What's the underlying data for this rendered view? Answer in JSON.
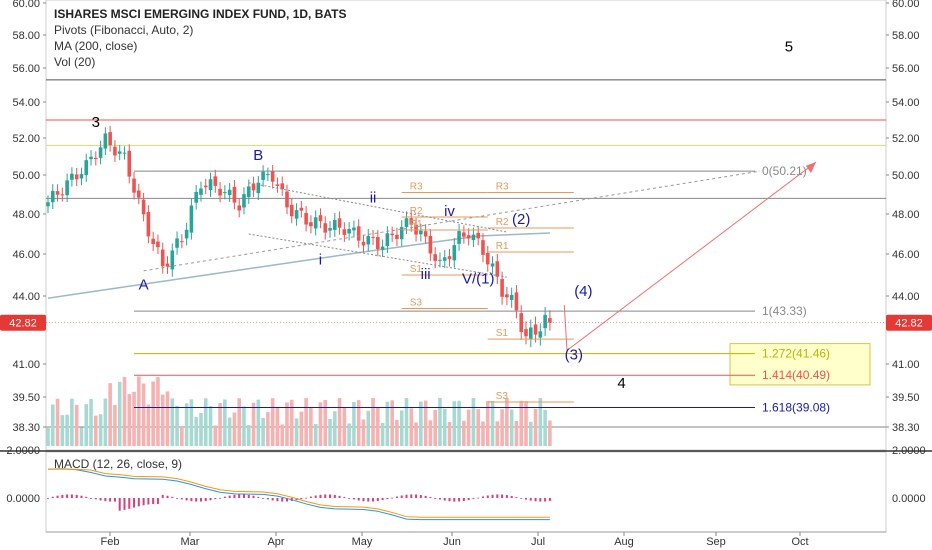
{
  "legend": {
    "title": "ISHARES MSCI EMERGING INDEX FUND, 1D, BATS",
    "pivots": "Pivots (Fibonacci, Auto, 2)",
    "ma": "MA (200, close)",
    "vol": "Vol (20)"
  },
  "macd_legend": "MACD (12, 26, close, 9)",
  "colors": {
    "up": "#26a69a",
    "down": "#ef5350",
    "ma": "#9db8c9",
    "pivot": "#e59a59",
    "wave": "#1a1aa8",
    "arrow": "#f07070",
    "fib_grey": "#888888",
    "fib_yellow_fill": "#ffffcc",
    "price_tag": "#e53935"
  },
  "chart_data": {
    "type": "candlestick",
    "title": "ISHARES MSCI EMERGING INDEX FUND, 1D, BATS",
    "y_ticks": [
      "60.00",
      "58.00",
      "56.00",
      "54.00",
      "52.00",
      "50.00",
      "48.00",
      "46.00",
      "44.00",
      "41.00",
      "39.50",
      "38.30"
    ],
    "y_tick_values": [
      60,
      58,
      56,
      54,
      52,
      50,
      48,
      46,
      44,
      41,
      39.5,
      38.3
    ],
    "x_ticks": [
      "Feb",
      "Mar",
      "Apr",
      "May",
      "Jun",
      "Jul",
      "Aug",
      "Sep",
      "Oct"
    ],
    "last_price": "42.82",
    "last_price_value": 42.82,
    "macd_ticks": [
      "2.0000",
      "0.0000"
    ],
    "macd_tick_values": [
      2,
      0
    ],
    "ohlc_anchors": [
      [
        0,
        48.6
      ],
      [
        8,
        50.5
      ],
      [
        12,
        51.9
      ],
      [
        16,
        50.9
      ],
      [
        20,
        47.8
      ],
      [
        24,
        45.4
      ],
      [
        28,
        46.8
      ],
      [
        32,
        49.6
      ],
      [
        36,
        49.3
      ],
      [
        40,
        48.5
      ],
      [
        44,
        49.8
      ],
      [
        47,
        50.0
      ],
      [
        50,
        48.4
      ],
      [
        54,
        47.7
      ],
      [
        58,
        47.4
      ],
      [
        62,
        47.3
      ],
      [
        66,
        46.7
      ],
      [
        70,
        46.5
      ],
      [
        74,
        47.3
      ],
      [
        76,
        47.6
      ],
      [
        80,
        46.3
      ],
      [
        82,
        45.4
      ],
      [
        86,
        46.8
      ],
      [
        88,
        47.1
      ],
      [
        91,
        46.2
      ],
      [
        95,
        44.3
      ],
      [
        98,
        43.4
      ],
      [
        100,
        42.1
      ],
      [
        104,
        42.9
      ],
      [
        105,
        42.82
      ]
    ],
    "horizontal_lines": [
      {
        "value": 55.3,
        "color": "#555555"
      },
      {
        "value": 53.0,
        "color": "#ef5350"
      },
      {
        "value": 51.6,
        "color": "#d4dc7a"
      },
      {
        "value": 48.8,
        "color": "#888888"
      },
      {
        "value": 38.3,
        "color": "#888888"
      }
    ],
    "fib_levels": [
      {
        "label": "0(50.21)",
        "value": 50.21,
        "color": "#888888"
      },
      {
        "label": "1(43.33)",
        "value": 43.33,
        "color": "#888888"
      },
      {
        "label": "1.272(41.46)",
        "value": 41.46,
        "color": "#b7b700"
      },
      {
        "label": "1.414(40.49)",
        "value": 40.49,
        "color": "#ef5350"
      },
      {
        "label": "1.618(39.08)",
        "value": 39.08,
        "color": "#1a1aa8"
      }
    ],
    "pivots": [
      {
        "label": "R3",
        "value": 49.1,
        "x0": 74,
        "x1": 92
      },
      {
        "label": "R2",
        "value": 47.85,
        "x0": 74,
        "x1": 92
      },
      {
        "label": "R1",
        "value": 47.2,
        "x0": 74,
        "x1": 92
      },
      {
        "label": "S1",
        "value": 45.0,
        "x0": 74,
        "x1": 92
      },
      {
        "label": "S3",
        "value": 43.45,
        "x0": 74,
        "x1": 92
      },
      {
        "label": "R3",
        "value": 49.1,
        "x0": 92,
        "x1": 110
      },
      {
        "label": "R2",
        "value": 47.3,
        "x0": 92,
        "x1": 110
      },
      {
        "label": "R1",
        "value": 46.1,
        "x0": 92,
        "x1": 110
      },
      {
        "label": "S1",
        "value": 42.1,
        "x0": 92,
        "x1": 110
      },
      {
        "label": "S3",
        "value": 39.3,
        "x0": 92,
        "x1": 110
      }
    ],
    "wave_labels": [
      {
        "text": "3",
        "x": 10,
        "y": 52.6,
        "color": "#000000"
      },
      {
        "text": "A",
        "x": 20,
        "y": 44.3,
        "color": "#1a1aa8"
      },
      {
        "text": "B",
        "x": 44,
        "y": 50.8,
        "color": "#1a1aa8"
      },
      {
        "text": "i",
        "x": 57,
        "y": 45.5,
        "color": "#1a1aa8"
      },
      {
        "text": "ii",
        "x": 68,
        "y": 48.6,
        "color": "#1a1aa8"
      },
      {
        "text": "iii",
        "x": 79,
        "y": 44.8,
        "color": "#1a1aa8"
      },
      {
        "text": "iv",
        "x": 84,
        "y": 47.9,
        "color": "#1a1aa8"
      },
      {
        "text": "V/(1)",
        "x": 90,
        "y": 44.6,
        "color": "#1a1aa8"
      },
      {
        "text": "(2)",
        "x": 99,
        "y": 47.5,
        "color": "#1a1aa8"
      },
      {
        "text": "(4)",
        "x": 112,
        "y": 44.0,
        "color": "#1a1aa8"
      },
      {
        "text": "(3)",
        "x": 110,
        "y": 41.2,
        "color": "#1a1aa8"
      },
      {
        "text": "4",
        "x": 120,
        "y": 39.9,
        "color": "#000000"
      },
      {
        "text": "5",
        "x": 155,
        "y": 57.0,
        "color": "#000000"
      }
    ]
  }
}
